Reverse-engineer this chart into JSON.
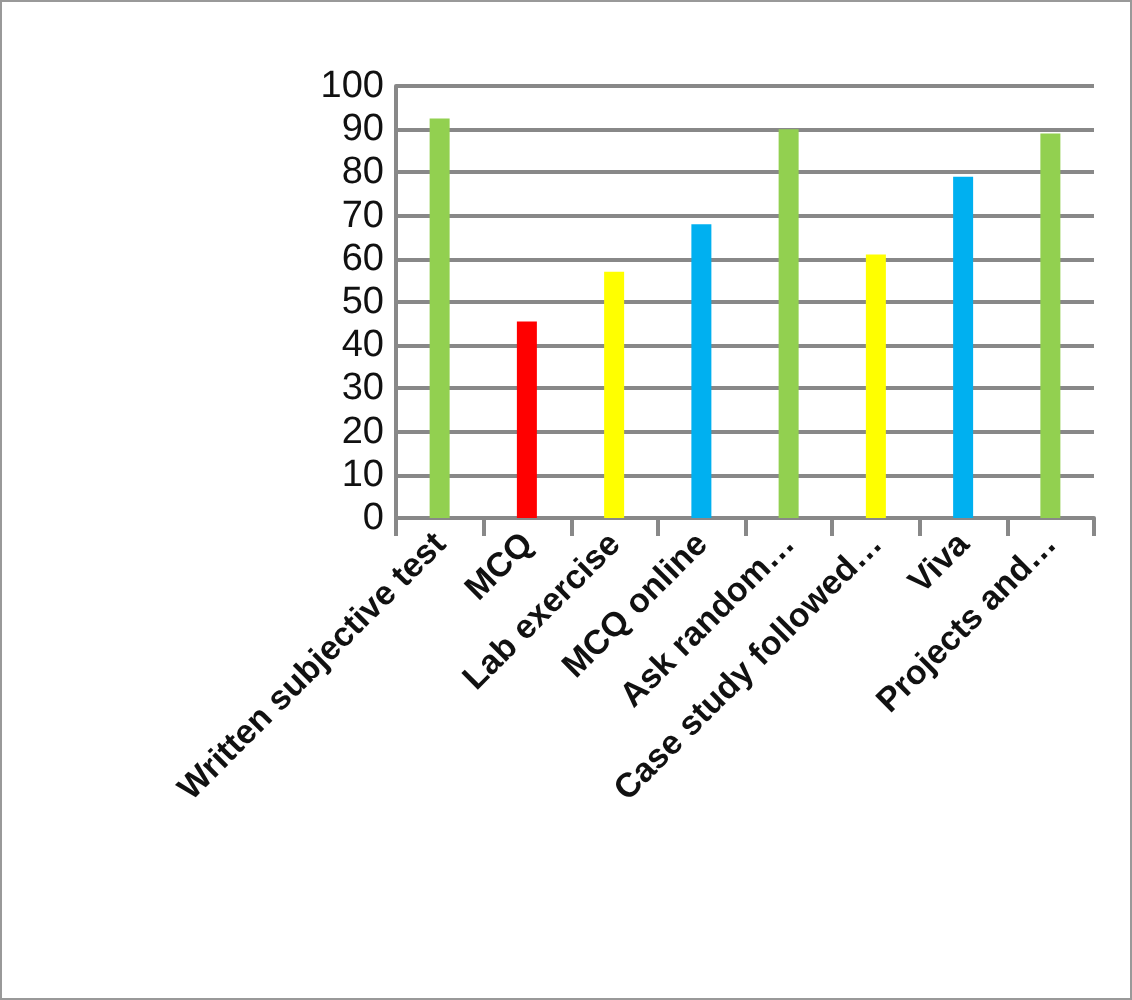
{
  "chart_data": {
    "type": "bar",
    "categories": [
      "Written subjective test",
      "MCQ",
      "Lab exercise",
      "MCQ online",
      "Ask random…",
      "Case study followed…",
      "Viva",
      "Projects and…"
    ],
    "values": [
      92.5,
      45.5,
      57,
      68,
      90,
      61,
      79,
      89
    ],
    "colors": [
      "#92d050",
      "#ff0000",
      "#ffff00",
      "#00b0f0",
      "#92d050",
      "#ffff00",
      "#00b0f0",
      "#92d050"
    ],
    "ylim": [
      0,
      100
    ],
    "yticks": [
      0,
      10,
      20,
      30,
      40,
      50,
      60,
      70,
      80,
      90,
      100
    ],
    "grid": "y"
  }
}
